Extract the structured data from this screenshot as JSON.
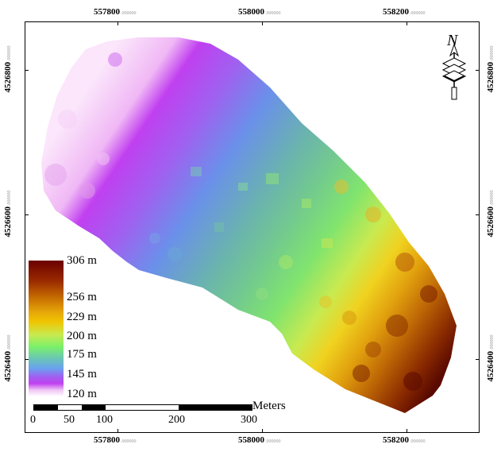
{
  "axes": {
    "top_x": [
      "557800",
      "558000",
      "558200"
    ],
    "bottom_x": [
      "557800",
      "558000",
      "558200"
    ],
    "x_suffix": ".000000",
    "left_y": [
      "4526800",
      "4526600",
      "4526400"
    ],
    "right_y": [
      "4526800",
      "4526600",
      "4526400"
    ],
    "y_suffix": ".000000"
  },
  "legend": {
    "labels": [
      "306 m",
      "256 m",
      "229 m",
      "200 m",
      "175 m",
      "145 m",
      "120 m"
    ],
    "colors": [
      "#6b0000",
      "#c46a00",
      "#f0c400",
      "#7af06a",
      "#6aa0f0",
      "#c040f0",
      "#fff4ff"
    ]
  },
  "scalebar": {
    "unit": "Meters",
    "ticks": [
      "0",
      "50",
      "100",
      "200",
      "300"
    ]
  },
  "north_arrow": {
    "letter": "N"
  },
  "colors": {
    "frame": "#000000",
    "low": "#fbe6fb",
    "high": "#5a0a00"
  }
}
